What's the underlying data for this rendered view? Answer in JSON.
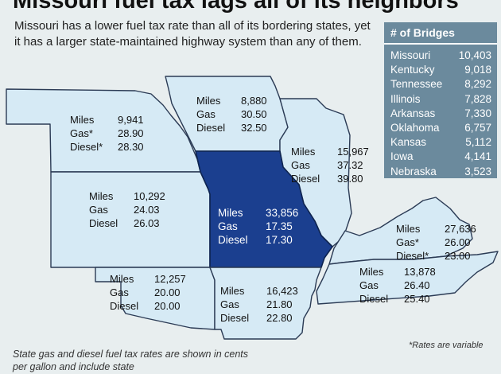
{
  "title": "Missouri fuel tax lags all of its neighbors",
  "subtitle": "Missouri has a lower fuel tax rate than all of its bordering states, yet it has a larger state-maintained highway system than any of them.",
  "labels": {
    "miles": "Miles",
    "gas": "Gas",
    "diesel": "Diesel"
  },
  "states": {
    "nebraska": {
      "name": "Nebraska",
      "miles": "9,941",
      "gas": "28.90",
      "diesel": "28.30",
      "gas_variable": true,
      "diesel_variable": true
    },
    "iowa": {
      "name": "Iowa",
      "miles": "8,880",
      "gas": "30.50",
      "diesel": "32.50",
      "gas_variable": false,
      "diesel_variable": false
    },
    "illinois": {
      "name": "Illinois",
      "miles": "15,967",
      "gas": "37.32",
      "diesel": "39.80",
      "gas_variable": false,
      "diesel_variable": false
    },
    "kansas": {
      "name": "Kansas",
      "miles": "10,292",
      "gas": "24.03",
      "diesel": "26.03",
      "gas_variable": false,
      "diesel_variable": false
    },
    "missouri": {
      "name": "Missouri",
      "miles": "33,856",
      "gas": "17.35",
      "diesel": "17.30",
      "gas_variable": false,
      "diesel_variable": false
    },
    "kentucky": {
      "name": "Kentucky",
      "miles": "27,636",
      "gas": "26.00",
      "diesel": "23.00",
      "gas_variable": true,
      "diesel_variable": true
    },
    "oklahoma": {
      "name": "Oklahoma",
      "miles": "12,257",
      "gas": "20.00",
      "diesel": "20.00",
      "gas_variable": false,
      "diesel_variable": false
    },
    "arkansas": {
      "name": "Arkansas",
      "miles": "16,423",
      "gas": "21.80",
      "diesel": "22.80",
      "gas_variable": false,
      "diesel_variable": false
    },
    "tennessee": {
      "name": "Tennessee",
      "miles": "13,878",
      "gas": "26.40",
      "diesel": "25.40",
      "gas_variable": false,
      "diesel_variable": false
    }
  },
  "bridges": {
    "title": "# of Bridges",
    "rows": [
      {
        "state": "Missouri",
        "count": "10,403"
      },
      {
        "state": "Kentucky",
        "count": "9,018"
      },
      {
        "state": "Tennessee",
        "count": "8,292"
      },
      {
        "state": "Illinois",
        "count": "7,828"
      },
      {
        "state": "Arkansas",
        "count": "7,330"
      },
      {
        "state": "Oklahoma",
        "count": "6,757"
      },
      {
        "state": "Kansas",
        "count": "5,112"
      },
      {
        "state": "Iowa",
        "count": "4,141"
      },
      {
        "state": "Nebraska",
        "count": "3,523"
      }
    ]
  },
  "notes": {
    "variable": "*Rates are variable",
    "footnote": "State gas and diesel fuel tax rates are shown in cents per gallon and include state"
  },
  "colors": {
    "background": "#e8eeef",
    "state_fill": "#d6eaf5",
    "missouri_fill": "#1b3f8f",
    "panel": "#6b8a9d"
  }
}
